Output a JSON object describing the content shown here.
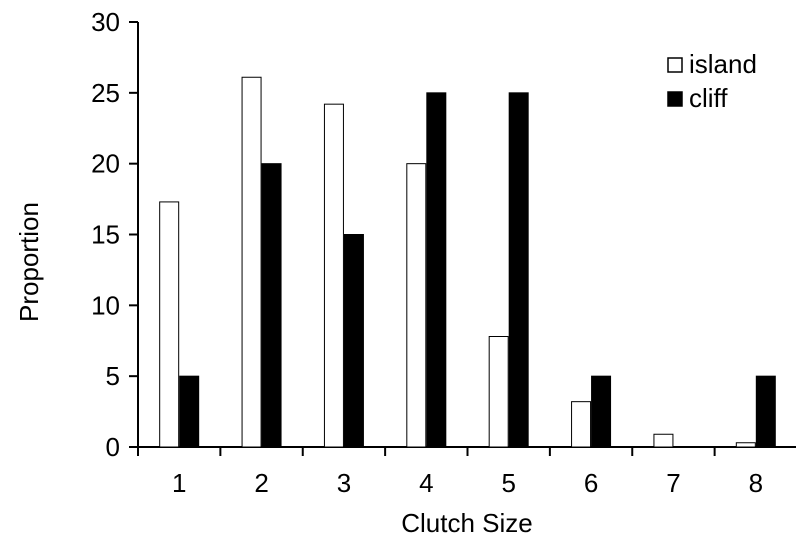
{
  "chart_data": {
    "type": "bar",
    "categories": [
      "1",
      "2",
      "3",
      "4",
      "5",
      "6",
      "7",
      "8"
    ],
    "series": [
      {
        "name": "island",
        "values": [
          17.3,
          26.1,
          24.2,
          20.0,
          7.8,
          3.2,
          0.9,
          0.3
        ],
        "fill": "#ffffff",
        "stroke": "#000000"
      },
      {
        "name": "cliff",
        "values": [
          5,
          20,
          15,
          25,
          25,
          5,
          0,
          5
        ],
        "fill": "#000000",
        "stroke": "#000000"
      }
    ],
    "xlabel": "Clutch Size",
    "ylabel": "Proportion",
    "ylim": [
      0,
      30
    ],
    "yticks": [
      "0",
      "5",
      "10",
      "15",
      "20",
      "25",
      "30"
    ],
    "grid": false,
    "legend_position": "top-right"
  }
}
